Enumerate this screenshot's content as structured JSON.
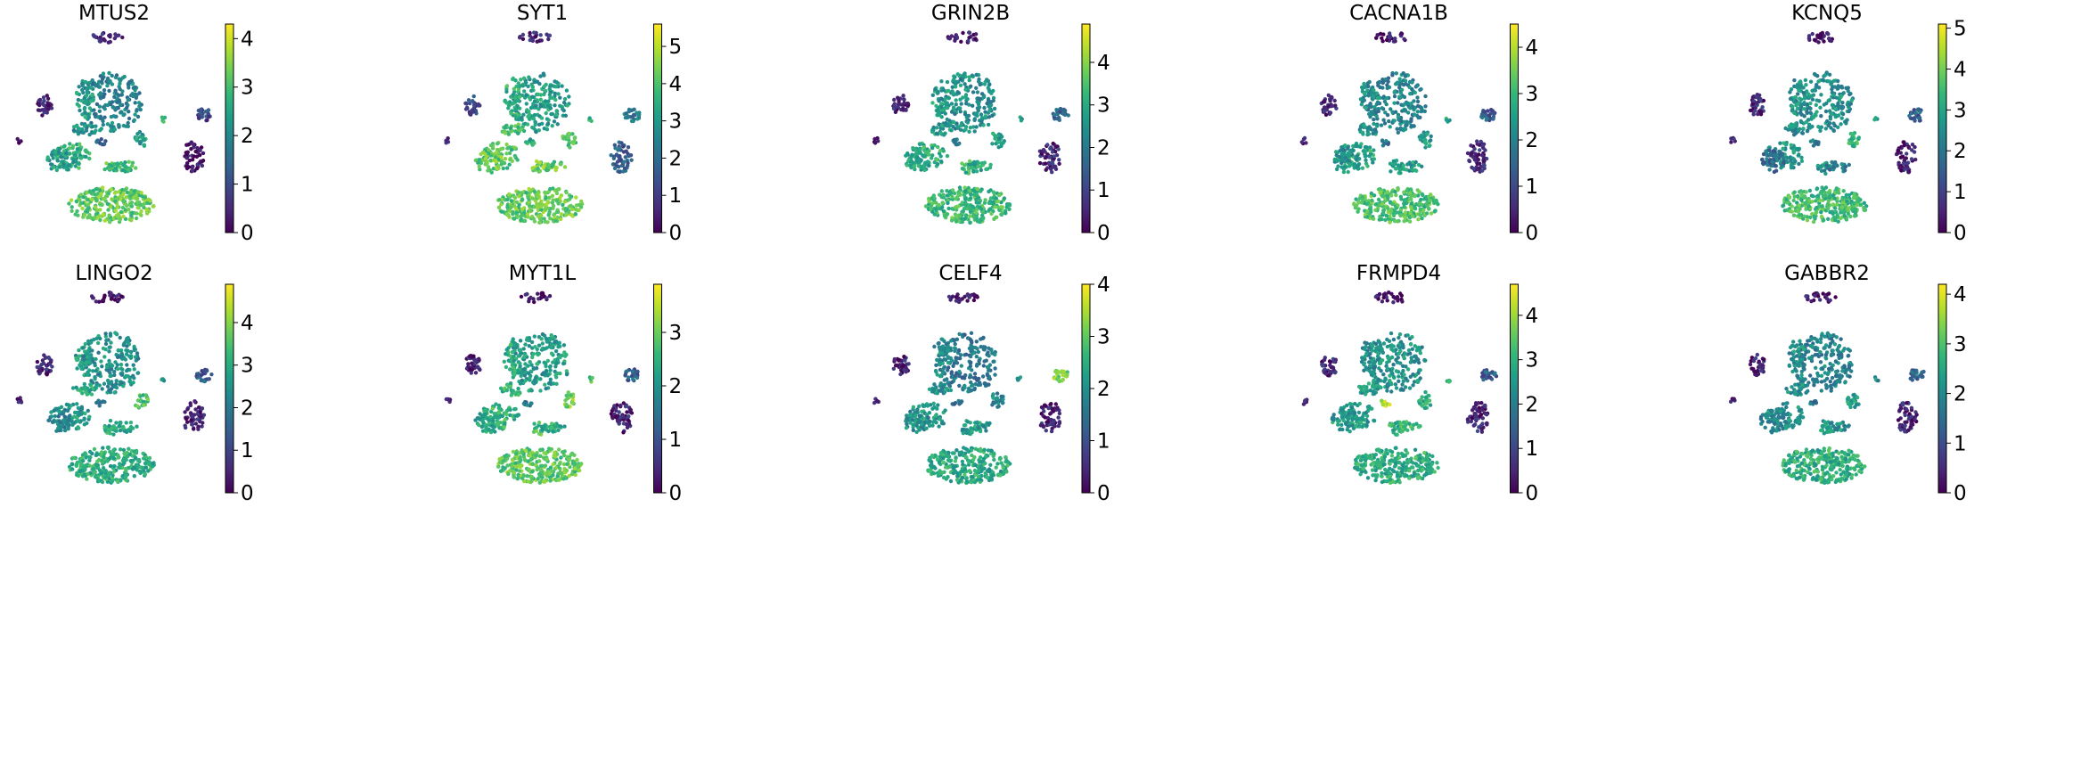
{
  "chart_data": {
    "type": "scatter",
    "layout": "2 rows x 5 columns of UMAP embeddings colored by gene expression",
    "colormap": "viridis",
    "colormap_stops": [
      "#440154",
      "#482878",
      "#3e4989",
      "#31688e",
      "#26828e",
      "#1f9e89",
      "#35b779",
      "#6ece58",
      "#b5de2b",
      "#fde725"
    ],
    "panels": [
      {
        "gene": "MTUS2",
        "vmax": 4.3,
        "ticks": [
          "0",
          "1",
          "2",
          "3",
          "4"
        ],
        "cluster_levels": [
          0.1,
          0.45,
          0.55,
          0.65,
          0.75,
          0.5,
          0.55,
          0.7,
          0.65,
          0.55,
          0.1,
          0.7,
          0.2,
          0.05,
          0.05,
          0.3
        ]
      },
      {
        "gene": "SYT1",
        "vmax": 5.6,
        "ticks": [
          "0",
          "1",
          "2",
          "3",
          "4",
          "5"
        ],
        "cluster_levels": [
          0.1,
          0.55,
          0.65,
          0.7,
          0.75,
          0.7,
          0.75,
          0.8,
          0.75,
          0.72,
          0.2,
          0.65,
          0.4,
          0.3,
          0.1,
          0.6
        ]
      },
      {
        "gene": "GRIN2B",
        "vmax": 4.9,
        "ticks": [
          "0",
          "1",
          "2",
          "3",
          "4"
        ],
        "cluster_levels": [
          0.05,
          0.5,
          0.55,
          0.62,
          0.68,
          0.55,
          0.58,
          0.65,
          0.6,
          0.58,
          0.1,
          0.55,
          0.3,
          0.1,
          0.05,
          0.4
        ]
      },
      {
        "gene": "CACNA1B",
        "vmax": 4.5,
        "ticks": [
          "0",
          "1",
          "2",
          "3",
          "4"
        ],
        "cluster_levels": [
          0.05,
          0.45,
          0.5,
          0.6,
          0.7,
          0.5,
          0.5,
          0.55,
          0.55,
          0.55,
          0.1,
          0.6,
          0.3,
          0.1,
          0.05,
          0.4
        ]
      },
      {
        "gene": "KCNQ5",
        "vmax": 5.1,
        "ticks": [
          "0",
          "1",
          "2",
          "3",
          "4",
          "5"
        ],
        "cluster_levels": [
          0.05,
          0.5,
          0.5,
          0.55,
          0.68,
          0.5,
          0.35,
          0.5,
          0.45,
          0.7,
          0.1,
          0.55,
          0.3,
          0.1,
          0.05,
          0.4
        ]
      },
      {
        "gene": "LINGO2",
        "vmax": 4.9,
        "ticks": [
          "0",
          "1",
          "2",
          "3",
          "4"
        ],
        "cluster_levels": [
          0.05,
          0.5,
          0.55,
          0.55,
          0.62,
          0.6,
          0.45,
          0.6,
          0.55,
          0.7,
          0.1,
          0.55,
          0.3,
          0.1,
          0.05,
          0.35
        ]
      },
      {
        "gene": "MYT1L",
        "vmax": 3.9,
        "ticks": [
          "0",
          "1",
          "2",
          "3"
        ],
        "cluster_levels": [
          0.05,
          0.55,
          0.6,
          0.65,
          0.75,
          0.65,
          0.6,
          0.7,
          0.62,
          0.8,
          0.1,
          0.7,
          0.3,
          0.1,
          0.05,
          0.4
        ]
      },
      {
        "gene": "CELF4",
        "vmax": 4.0,
        "ticks": [
          "0",
          "1",
          "2",
          "3",
          "4"
        ],
        "cluster_levels": [
          0.05,
          0.4,
          0.5,
          0.55,
          0.6,
          0.5,
          0.5,
          0.55,
          0.55,
          0.48,
          0.1,
          0.55,
          0.8,
          0.1,
          0.05,
          0.4
        ]
      },
      {
        "gene": "FRMPD4",
        "vmax": 4.7,
        "ticks": [
          "0",
          "1",
          "2",
          "3",
          "4"
        ],
        "cluster_levels": [
          0.05,
          0.5,
          0.5,
          0.55,
          0.62,
          0.55,
          0.55,
          0.62,
          0.7,
          0.6,
          0.1,
          0.6,
          0.3,
          0.1,
          0.05,
          0.85
        ]
      },
      {
        "gene": "GABBR2",
        "vmax": 4.2,
        "ticks": [
          "0",
          "1",
          "2",
          "3",
          "4"
        ],
        "cluster_levels": [
          0.05,
          0.45,
          0.5,
          0.5,
          0.62,
          0.5,
          0.45,
          0.55,
          0.5,
          0.55,
          0.1,
          0.5,
          0.3,
          0.1,
          0.05,
          0.4
        ]
      }
    ]
  }
}
